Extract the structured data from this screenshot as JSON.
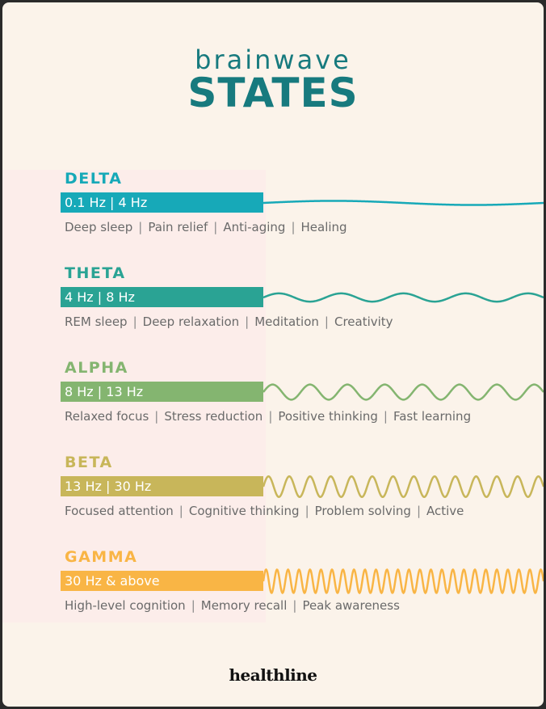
{
  "header": {
    "title_small": "brainwave",
    "title_big": "STATES"
  },
  "states": [
    {
      "name": "DELTA",
      "range": "0.1 Hz | 4 Hz",
      "color": "#17a9b8",
      "wave_cycles": 1,
      "wave_amplitude": 0.15,
      "effects": [
        "Deep sleep",
        "Pain relief",
        "Anti-aging",
        "Healing"
      ]
    },
    {
      "name": "THETA",
      "range": "4 Hz | 8 Hz",
      "color": "#2aa394",
      "wave_cycles": 4.5,
      "wave_amplitude": 0.3,
      "effects": [
        "REM sleep",
        "Deep relaxation",
        "Meditation",
        "Creativity"
      ]
    },
    {
      "name": "ALPHA",
      "range": "8 Hz | 13 Hz",
      "color": "#84b570",
      "wave_cycles": 7.5,
      "wave_amplitude": 0.55,
      "effects": [
        "Relaxed focus",
        "Stress reduction",
        "Positive thinking",
        "Fast learning"
      ]
    },
    {
      "name": "BETA",
      "range": "13 Hz | 30 Hz",
      "color": "#c8b65a",
      "wave_cycles": 13.5,
      "wave_amplitude": 0.75,
      "effects": [
        "Focused attention",
        "Cognitive thinking",
        "Problem solving",
        "Active"
      ]
    },
    {
      "name": "GAMMA",
      "range": "30 Hz & above",
      "color": "#f9b545",
      "wave_cycles": 25.5,
      "wave_amplitude": 0.85,
      "effects": [
        "High-level cognition",
        "Memory recall",
        "Peak awareness"
      ]
    }
  ],
  "footer": {
    "logo": "healthline"
  }
}
